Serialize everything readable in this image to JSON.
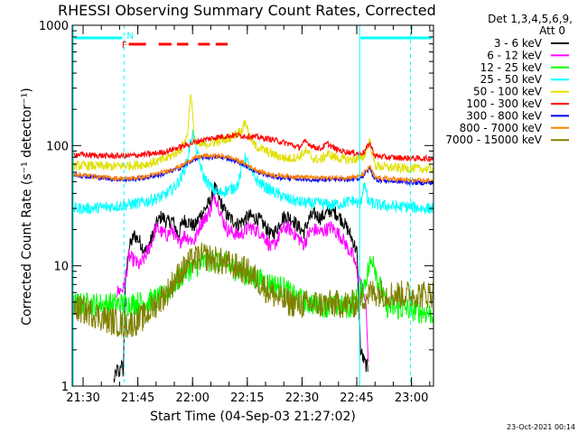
{
  "chart_data": {
    "type": "line",
    "title": "RHESSI Observing Summary Count Rates, Corrected",
    "xlabel": "Start Time (04-Sep-03 21:27:02)",
    "ylabel": "Corrected Count Rate (s⁻¹ detector⁻¹)",
    "yscale": "log",
    "ylim": [
      1,
      1000
    ],
    "xlim_minutes": [
      0,
      99
    ],
    "x_tick_labels": [
      "21:30",
      "21:45",
      "22:00",
      "22:15",
      "22:30",
      "22:45",
      "23:00"
    ],
    "x_tick_minutes": [
      2.97,
      17.97,
      32.97,
      47.97,
      62.97,
      77.97,
      92.97
    ],
    "y_tick_labels": [
      "1",
      "10",
      "100",
      "1000"
    ],
    "y_tick_values": [
      1,
      10,
      100,
      1000
    ],
    "legend_header": [
      "Det 1,3,4,5,6,9,",
      "Att 0"
    ],
    "legend_position": "top-right",
    "timestamp": "23-Oct-2021 00:14",
    "annotations": {
      "N": "N",
      "F": "F"
    },
    "night_intervals_minutes": [
      [
        0,
        14.2
      ],
      [
        78.5,
        99
      ]
    ],
    "saa_marker_minutes": [
      14.2,
      92.7
    ],
    "flare_intervals_minutes": [
      [
        15.5,
        20.2
      ],
      [
        23.7,
        27.2
      ],
      [
        28.7,
        31.8
      ],
      [
        34.5,
        37.7
      ],
      [
        39.3,
        42.6
      ]
    ],
    "series": [
      {
        "name": "3 - 6 keV",
        "color": "#000000",
        "x": [
          11.4,
          12.4,
          12.9,
          13.3,
          14.0,
          14.5,
          15.5,
          17.0,
          18.5,
          20.0,
          21.5,
          23.0,
          24.5,
          26.0,
          27.5,
          29.0,
          30.5,
          32.0,
          33.5,
          35.0,
          36.5,
          38.0,
          39.0,
          40.0,
          41.0,
          42.5,
          44.0,
          45.5,
          47.0,
          48.5,
          50.0,
          51.5,
          53.0,
          54.5,
          56.0,
          57.5,
          59.0,
          60.5,
          62.0,
          63.5,
          65.0,
          66.5,
          68.0,
          69.5,
          71.0,
          72.5,
          74.0,
          75.5,
          77.0,
          78.0,
          79.0,
          80.0,
          81.0
        ],
        "values": [
          1.1,
          1.4,
          1.2,
          1.6,
          1.3,
          7,
          14,
          18,
          16,
          13,
          16,
          22,
          26,
          23,
          24,
          18,
          24,
          23,
          21,
          26,
          30,
          35,
          45,
          38,
          32,
          26,
          24,
          22,
          24,
          26,
          25,
          24,
          21,
          18,
          20,
          25,
          26,
          24,
          21,
          19,
          25,
          27,
          25,
          27,
          29,
          27,
          24,
          20,
          16,
          13,
          2.0,
          1.6,
          1.4
        ]
      },
      {
        "name": "6 - 12 keV",
        "color": "#ff00ff",
        "x": [
          12.0,
          14.0,
          14.7,
          15.5,
          17.0,
          18.5,
          20.0,
          21.5,
          23.0,
          24.5,
          26.0,
          27.5,
          29.0,
          30.5,
          32.0,
          33.5,
          35.0,
          36.5,
          38.0,
          39.0,
          40.0,
          41.0,
          42.5,
          44.0,
          45.5,
          47.0,
          48.5,
          50.0,
          51.5,
          53.0,
          54.5,
          56.0,
          57.5,
          59.0,
          60.5,
          62.0,
          63.5,
          65.0,
          66.5,
          68.0,
          69.5,
          71.0,
          72.5,
          74.0,
          75.5,
          77.0,
          78.0,
          79.0,
          80.0,
          80.6,
          81.2
        ],
        "values": [
          6,
          6.5,
          8,
          12,
          11,
          10,
          12,
          15,
          21,
          19,
          18,
          20,
          15,
          18,
          17,
          16,
          22,
          25,
          30,
          38,
          33,
          25,
          20,
          19,
          18,
          19,
          21,
          20,
          19,
          17,
          14,
          16,
          20,
          21,
          19,
          17,
          15,
          19,
          20,
          19,
          20,
          21,
          19,
          17,
          14,
          12,
          9,
          7,
          6,
          4,
          1.4
        ]
      },
      {
        "name": "12 - 25 keV",
        "color": "#00ff00",
        "x": [
          0,
          5,
          10,
          15,
          20,
          25,
          28,
          31,
          34,
          37,
          40,
          43,
          46,
          49,
          52,
          55,
          58,
          61,
          64,
          67,
          70,
          73,
          76,
          78.5,
          80.0,
          81.5,
          82.5,
          83.5,
          86,
          89,
          92,
          95,
          99
        ],
        "values": [
          4.8,
          4.8,
          4.8,
          4.8,
          5.0,
          5.5,
          7,
          9,
          10,
          11,
          11,
          10,
          9,
          8,
          7.5,
          7,
          6.5,
          5.5,
          5.0,
          4.8,
          4.6,
          4.6,
          4.5,
          5.5,
          7,
          10,
          12,
          8,
          4.6,
          4.4,
          4.4,
          4.2,
          4.0
        ]
      },
      {
        "name": "25 - 50 keV",
        "color": "#00ffff",
        "x": [
          0,
          5,
          10,
          15,
          20,
          25,
          28,
          30,
          31.5,
          33.0,
          34.5,
          36,
          38,
          40,
          42,
          44,
          45.5,
          46.5,
          47.5,
          49,
          51,
          53,
          56,
          59,
          62,
          65,
          68,
          71,
          74,
          77,
          79.0,
          80.0,
          81,
          84,
          88,
          92,
          96,
          99
        ],
        "values": [
          30,
          30,
          31,
          32,
          34,
          38,
          45,
          55,
          75,
          130,
          80,
          55,
          45,
          40,
          42,
          44,
          48,
          65,
          80,
          60,
          50,
          45,
          40,
          36,
          34,
          33,
          33,
          32,
          33,
          35,
          32,
          50,
          34,
          32,
          31,
          31,
          30,
          30
        ]
      },
      {
        "name": "50 - 100 keV",
        "color": "#e0e000",
        "x": [
          0,
          5,
          10,
          15,
          20,
          25,
          28,
          30,
          31.5,
          32.5,
          33.5,
          35,
          38,
          41,
          44,
          46.5,
          47.5,
          48.5,
          50,
          53,
          56,
          59,
          62,
          64,
          66,
          68,
          70,
          73,
          76,
          78.5,
          80,
          81.5,
          83,
          86,
          89,
          92,
          95,
          99
        ],
        "values": [
          68,
          68,
          67,
          68,
          70,
          76,
          85,
          95,
          120,
          280,
          110,
          100,
          105,
          110,
          120,
          135,
          160,
          120,
          100,
          90,
          82,
          78,
          80,
          90,
          78,
          76,
          85,
          78,
          76,
          78,
          82,
          110,
          68,
          66,
          65,
          65,
          64,
          64
        ]
      },
      {
        "name": "100 - 300 keV",
        "color": "#ff0000",
        "x": [
          0,
          5,
          10,
          15,
          20,
          25,
          30,
          35,
          40,
          45,
          50,
          55,
          60,
          62,
          64,
          66,
          68,
          70,
          72,
          74,
          76,
          78.5,
          80,
          81.5,
          83,
          86,
          90,
          95,
          99
        ],
        "values": [
          85,
          83,
          82,
          82,
          84,
          88,
          98,
          110,
          118,
          122,
          118,
          112,
          102,
          96,
          108,
          98,
          94,
          104,
          94,
          90,
          88,
          86,
          88,
          105,
          82,
          80,
          79,
          78,
          78
        ]
      },
      {
        "name": "300 - 800 keV",
        "color": "#0000ff",
        "x": [
          0,
          5,
          10,
          15,
          20,
          25,
          30,
          33,
          36,
          40,
          43,
          46,
          49,
          52,
          55,
          58,
          62,
          66,
          70,
          74,
          78.5,
          80,
          81.5,
          83,
          86,
          90,
          95,
          99
        ],
        "values": [
          57,
          55,
          53,
          52,
          54,
          58,
          66,
          76,
          80,
          80,
          78,
          72,
          64,
          58,
          55,
          54,
          53,
          52,
          52,
          52,
          53,
          57,
          65,
          52,
          51,
          50,
          49,
          49
        ]
      },
      {
        "name": "800 - 7000 keV",
        "color": "#ff8000",
        "x": [
          0,
          5,
          10,
          15,
          20,
          25,
          30,
          33,
          36,
          40,
          43,
          46,
          49,
          52,
          55,
          58,
          62,
          66,
          70,
          74,
          78.5,
          80,
          81.5,
          83,
          86,
          90,
          95,
          99
        ],
        "values": [
          58,
          56,
          54,
          53,
          55,
          60,
          68,
          78,
          82,
          82,
          80,
          74,
          66,
          60,
          57,
          56,
          55,
          54,
          54,
          54,
          55,
          59,
          67,
          54,
          53,
          52,
          51,
          51
        ]
      },
      {
        "name": "7000 - 15000 keV",
        "color": "#808000",
        "x": [
          0,
          3,
          6,
          9,
          12,
          14,
          16,
          18,
          20,
          22,
          24,
          26,
          28,
          30,
          32,
          34,
          36,
          38,
          40,
          42,
          44,
          46,
          48,
          50,
          53,
          56,
          59,
          62,
          66,
          70,
          74,
          77,
          78.5,
          80,
          82,
          84,
          87,
          90,
          93,
          96,
          99
        ],
        "values": [
          4.5,
          4.3,
          4.0,
          3.6,
          3.4,
          3.2,
          3.3,
          3.5,
          3.8,
          4.5,
          5.2,
          6.0,
          7.5,
          9.0,
          10.5,
          11.5,
          12.0,
          11.5,
          11.0,
          10.5,
          10.0,
          9.5,
          9.0,
          8.0,
          6.5,
          5.5,
          5.0,
          4.8,
          4.8,
          4.8,
          4.8,
          4.8,
          5.0,
          5.5,
          6.0,
          6.0,
          5.8,
          5.8,
          5.8,
          5.8,
          5.8
        ]
      }
    ]
  }
}
